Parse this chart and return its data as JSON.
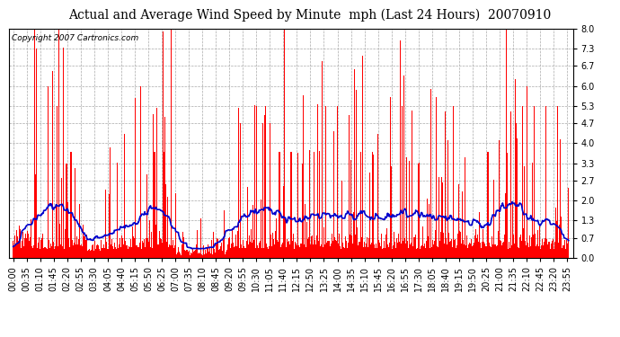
{
  "title": "Actual and Average Wind Speed by Minute  mph (Last 24 Hours)  20070910",
  "copyright": "Copyright 2007 Cartronics.com",
  "yticks": [
    0.0,
    0.7,
    1.3,
    2.0,
    2.7,
    3.3,
    4.0,
    4.7,
    5.3,
    6.0,
    6.7,
    7.3,
    8.0
  ],
  "ylim": [
    0.0,
    8.0
  ],
  "bar_color": "#FF0000",
  "line_color": "#0000CC",
  "bg_color": "#FFFFFF",
  "plot_bg_color": "#FFFFFF",
  "grid_color": "#AAAAAA",
  "title_fontsize": 10,
  "copyright_fontsize": 6.5,
  "tick_fontsize": 7,
  "n_minutes": 1440
}
